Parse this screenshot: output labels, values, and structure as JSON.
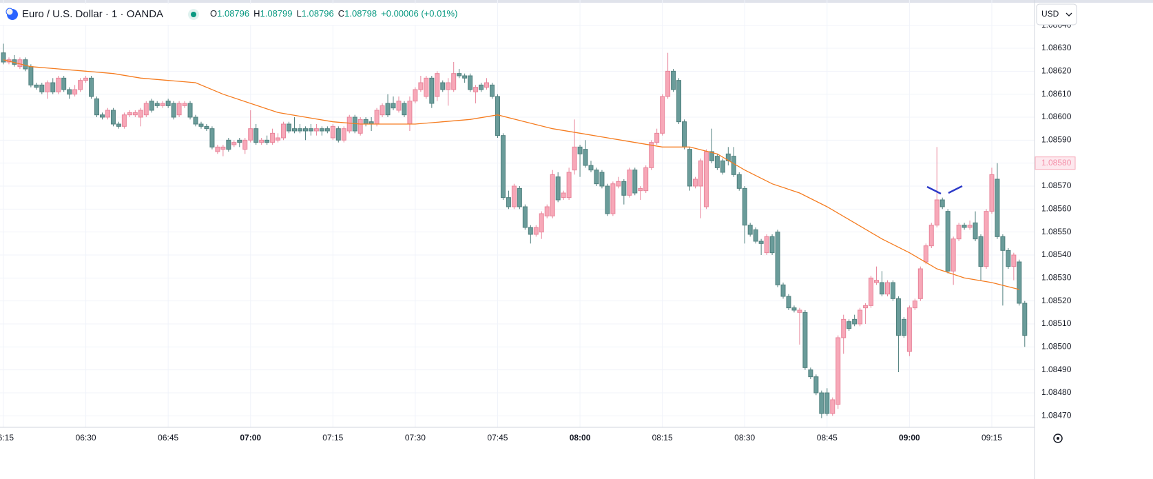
{
  "header": {
    "title": "Euro / U.S. Dollar · 1 · OANDA",
    "ohlc": [
      {
        "label": "O",
        "value": "1.08796"
      },
      {
        "label": "H",
        "value": "1.08799"
      },
      {
        "label": "L",
        "value": "1.08796"
      },
      {
        "label": "C",
        "value": "1.08798"
      }
    ],
    "change": "+0.00006 (+0.01%)",
    "currency": "USD"
  },
  "chart_data": {
    "type": "candlestick",
    "up_color": "#f7a8b8",
    "up_border": "#e8849a",
    "down_color": "#6a9c9a",
    "down_border": "#4f7f7d",
    "ylim": [
      1.08465,
      1.08651
    ],
    "yticks": [
      {
        "value": 1.0847,
        "label": "1.08470"
      },
      {
        "value": 1.0848,
        "label": "1.08480"
      },
      {
        "value": 1.0849,
        "label": "1.08490"
      },
      {
        "value": 1.085,
        "label": "1.08500"
      },
      {
        "value": 1.0851,
        "label": "1.08510"
      },
      {
        "value": 1.0852,
        "label": "1.08520"
      },
      {
        "value": 1.0853,
        "label": "1.08530"
      },
      {
        "value": 1.0854,
        "label": "1.08540"
      },
      {
        "value": 1.0855,
        "label": "1.08550"
      },
      {
        "value": 1.0856,
        "label": "1.08560"
      },
      {
        "value": 1.0857,
        "label": "1.08570"
      },
      {
        "value": 1.0858,
        "label": "1.08580"
      },
      {
        "value": 1.0859,
        "label": "1.08590"
      },
      {
        "value": 1.086,
        "label": "1.08600"
      },
      {
        "value": 1.0861,
        "label": "1.08610"
      },
      {
        "value": 1.0862,
        "label": "1.08620"
      },
      {
        "value": 1.0863,
        "label": "1.08630"
      },
      {
        "value": 1.0864,
        "label": "1.08640"
      }
    ],
    "xticks": [
      {
        "value": 0,
        "label": "06:15"
      },
      {
        "value": 15,
        "label": "06:30"
      },
      {
        "value": 30,
        "label": "06:45"
      },
      {
        "value": 45,
        "label": "07:00",
        "bold": true
      },
      {
        "value": 60,
        "label": "07:15"
      },
      {
        "value": 75,
        "label": "07:30"
      },
      {
        "value": 90,
        "label": "07:45"
      },
      {
        "value": 105,
        "label": "08:00",
        "bold": true
      },
      {
        "value": 120,
        "label": "08:15"
      },
      {
        "value": 135,
        "label": "08:30"
      },
      {
        "value": 150,
        "label": "08:45"
      },
      {
        "value": 165,
        "label": "09:00",
        "bold": true
      },
      {
        "value": 180,
        "label": "09:15"
      }
    ],
    "grid": true,
    "price_label": {
      "value": 1.0858,
      "label": "1.08580"
    },
    "ma": {
      "color": "#f57c20",
      "x": [
        0,
        5,
        10,
        15,
        20,
        25,
        30,
        35,
        40,
        45,
        50,
        55,
        60,
        65,
        70,
        75,
        80,
        85,
        90,
        95,
        100,
        105,
        110,
        115,
        120,
        125,
        130,
        135,
        140,
        145,
        150,
        155,
        160,
        165,
        170,
        175,
        180,
        185
      ],
      "values": [
        1.08625,
        1.08622,
        1.08621,
        1.0862,
        1.08619,
        1.08617,
        1.08616,
        1.08615,
        1.0861,
        1.08606,
        1.08602,
        1.086,
        1.08598,
        1.08597,
        1.08597,
        1.08597,
        1.08598,
        1.08599,
        1.08601,
        1.08598,
        1.08595,
        1.08593,
        1.08591,
        1.08589,
        1.08587,
        1.08587,
        1.08584,
        1.08577,
        1.08571,
        1.08567,
        1.08561,
        1.08554,
        1.08547,
        1.08541,
        1.08534,
        1.0853,
        1.08528,
        1.08525
      ]
    },
    "ohlc": [
      [
        1.08628,
        1.08632,
        1.08623,
        1.08624
      ],
      [
        1.08624,
        1.08626,
        1.08623,
        1.08625
      ],
      [
        1.08625,
        1.08627,
        1.08622,
        1.08623
      ],
      [
        1.08622,
        1.08626,
        1.08621,
        1.08625
      ],
      [
        1.08625,
        1.08626,
        1.0862,
        1.08621
      ],
      [
        1.08622,
        1.08623,
        1.08613,
        1.08614
      ],
      [
        1.08614,
        1.08615,
        1.08612,
        1.08613
      ],
      [
        1.08614,
        1.08615,
        1.0861,
        1.08611
      ],
      [
        1.08611,
        1.08616,
        1.08608,
        1.08615
      ],
      [
        1.08615,
        1.08617,
        1.0861,
        1.08611
      ],
      [
        1.08611,
        1.08618,
        1.0861,
        1.08617
      ],
      [
        1.08617,
        1.08618,
        1.08611,
        1.08612
      ],
      [
        1.08612,
        1.08613,
        1.08608,
        1.0861
      ],
      [
        1.0861,
        1.08614,
        1.08609,
        1.08612
      ],
      [
        1.08612,
        1.08617,
        1.08611,
        1.08616
      ],
      [
        1.08616,
        1.08618,
        1.08615,
        1.08617
      ],
      [
        1.08617,
        1.08618,
        1.08608,
        1.08609
      ],
      [
        1.08608,
        1.08609,
        1.086,
        1.08601
      ],
      [
        1.08601,
        1.08602,
        1.08599,
        1.086
      ],
      [
        1.086,
        1.08604,
        1.08599,
        1.08603
      ],
      [
        1.08603,
        1.08604,
        1.08596,
        1.08597
      ],
      [
        1.08597,
        1.08598,
        1.08595,
        1.08596
      ],
      [
        1.08596,
        1.08602,
        1.08595,
        1.08601
      ],
      [
        1.08601,
        1.08603,
        1.086,
        1.08602
      ],
      [
        1.08601,
        1.08603,
        1.086,
        1.08602
      ],
      [
        1.086,
        1.08604,
        1.08596,
        1.08603
      ],
      [
        1.08601,
        1.08607,
        1.086,
        1.08606
      ],
      [
        1.08607,
        1.08608,
        1.08602,
        1.08603
      ],
      [
        1.08606,
        1.08607,
        1.08604,
        1.08605
      ],
      [
        1.08605,
        1.08607,
        1.08604,
        1.08606
      ],
      [
        1.08607,
        1.08608,
        1.08604,
        1.08605
      ],
      [
        1.08606,
        1.08607,
        1.08599,
        1.086
      ],
      [
        1.08601,
        1.08607,
        1.086,
        1.08606
      ],
      [
        1.08605,
        1.08607,
        1.08604,
        1.08606
      ],
      [
        1.08606,
        1.08607,
        1.08599,
        1.086
      ],
      [
        1.086,
        1.08601,
        1.08596,
        1.08597
      ],
      [
        1.08597,
        1.08598,
        1.08595,
        1.08596
      ],
      [
        1.08596,
        1.08597,
        1.08594,
        1.08595
      ],
      [
        1.08595,
        1.08596,
        1.08586,
        1.08587
      ],
      [
        1.08585,
        1.08588,
        1.08584,
        1.08587
      ],
      [
        1.08586,
        1.08588,
        1.08583,
        1.08587
      ],
      [
        1.0859,
        1.08591,
        1.08585,
        1.08586
      ],
      [
        1.08588,
        1.0859,
        1.08587,
        1.08589
      ],
      [
        1.0859,
        1.08591,
        1.08587,
        1.08589
      ],
      [
        1.08586,
        1.08591,
        1.08584,
        1.0859
      ],
      [
        1.0859,
        1.08603,
        1.08589,
        1.08595
      ],
      [
        1.08595,
        1.08597,
        1.08588,
        1.08589
      ],
      [
        1.08589,
        1.08591,
        1.08588,
        1.0859
      ],
      [
        1.0859,
        1.08592,
        1.08588,
        1.08589
      ],
      [
        1.08589,
        1.08595,
        1.08588,
        1.08593
      ],
      [
        1.0859,
        1.08593,
        1.08589,
        1.08591
      ],
      [
        1.08591,
        1.08598,
        1.0859,
        1.08597
      ],
      [
        1.08597,
        1.08598,
        1.08593,
        1.08594
      ],
      [
        1.08595,
        1.086,
        1.08593,
        1.08594
      ],
      [
        1.08595,
        1.08597,
        1.08593,
        1.08594
      ],
      [
        1.08595,
        1.08596,
        1.0859,
        1.08594
      ],
      [
        1.08595,
        1.08597,
        1.08592,
        1.08594
      ],
      [
        1.08594,
        1.08597,
        1.08592,
        1.08595
      ],
      [
        1.08595,
        1.08596,
        1.08592,
        1.08594
      ],
      [
        1.08595,
        1.08596,
        1.08593,
        1.08594
      ],
      [
        1.08591,
        1.08597,
        1.0859,
        1.08596
      ],
      [
        1.08595,
        1.08596,
        1.08589,
        1.0859
      ],
      [
        1.0859,
        1.08596,
        1.08589,
        1.08595
      ],
      [
        1.08594,
        1.08601,
        1.08593,
        1.086
      ],
      [
        1.086,
        1.08601,
        1.08593,
        1.08594
      ],
      [
        1.08593,
        1.086,
        1.08592,
        1.08599
      ],
      [
        1.08599,
        1.086,
        1.08596,
        1.08597
      ],
      [
        1.08598,
        1.086,
        1.08594,
        1.08597
      ],
      [
        1.08597,
        1.08604,
        1.08596,
        1.08603
      ],
      [
        1.08601,
        1.08606,
        1.086,
        1.08605
      ],
      [
        1.08606,
        1.0861,
        1.086,
        1.08601
      ],
      [
        1.08606,
        1.08609,
        1.08603,
        1.08604
      ],
      [
        1.08603,
        1.08609,
        1.08602,
        1.08607
      ],
      [
        1.08606,
        1.08607,
        1.086,
        1.08601
      ],
      [
        1.08597,
        1.08609,
        1.08594,
        1.08607
      ],
      [
        1.08607,
        1.08613,
        1.08606,
        1.08612
      ],
      [
        1.08612,
        1.08618,
        1.08611,
        1.08615
      ],
      [
        1.08609,
        1.08618,
        1.08608,
        1.08617
      ],
      [
        1.08617,
        1.08618,
        1.08604,
        1.08606
      ],
      [
        1.08609,
        1.0862,
        1.08607,
        1.08619
      ],
      [
        1.08615,
        1.08616,
        1.08611,
        1.08612
      ],
      [
        1.08612,
        1.08617,
        1.08605,
        1.08615
      ],
      [
        1.08612,
        1.08624,
        1.08611,
        1.08619
      ],
      [
        1.08619,
        1.08621,
        1.08617,
        1.08618
      ],
      [
        1.08618,
        1.08619,
        1.08615,
        1.08617
      ],
      [
        1.08618,
        1.08619,
        1.08611,
        1.08612
      ],
      [
        1.08611,
        1.08614,
        1.08606,
        1.08613
      ],
      [
        1.08614,
        1.08615,
        1.08611,
        1.08612
      ],
      [
        1.08613,
        1.08617,
        1.08612,
        1.08615
      ],
      [
        1.08614,
        1.08615,
        1.08608,
        1.08609
      ],
      [
        1.08609,
        1.0861,
        1.08591,
        1.08592
      ],
      [
        1.08592,
        1.08593,
        1.08564,
        1.08565
      ],
      [
        1.08565,
        1.08568,
        1.0856,
        1.08561
      ],
      [
        1.08561,
        1.08571,
        1.0856,
        1.0857
      ],
      [
        1.08569,
        1.0857,
        1.0856,
        1.08561
      ],
      [
        1.08561,
        1.08562,
        1.08551,
        1.08552
      ],
      [
        1.08552,
        1.08553,
        1.08545,
        1.08549
      ],
      [
        1.08549,
        1.08553,
        1.08548,
        1.08552
      ],
      [
        1.0855,
        1.08559,
        1.08547,
        1.08558
      ],
      [
        1.08557,
        1.08562,
        1.08556,
        1.08561
      ],
      [
        1.08557,
        1.08577,
        1.08556,
        1.08575
      ],
      [
        1.08574,
        1.08576,
        1.08563,
        1.08564
      ],
      [
        1.08565,
        1.08568,
        1.08564,
        1.08567
      ],
      [
        1.08565,
        1.08578,
        1.08564,
        1.08576
      ],
      [
        1.08577,
        1.08599,
        1.08575,
        1.08587
      ],
      [
        1.08587,
        1.08588,
        1.08574,
        1.08584
      ],
      [
        1.08586,
        1.0859,
        1.08578,
        1.08579
      ],
      [
        1.08579,
        1.08581,
        1.08576,
        1.08577
      ],
      [
        1.08577,
        1.08578,
        1.0857,
        1.08571
      ],
      [
        1.08576,
        1.08577,
        1.08569,
        1.0857
      ],
      [
        1.0857,
        1.08571,
        1.08557,
        1.08558
      ],
      [
        1.08558,
        1.08572,
        1.08557,
        1.08571
      ],
      [
        1.0857,
        1.08574,
        1.08569,
        1.08572
      ],
      [
        1.08572,
        1.08573,
        1.08562,
        1.08566
      ],
      [
        1.08566,
        1.08578,
        1.08565,
        1.08577
      ],
      [
        1.08577,
        1.08578,
        1.08566,
        1.08567
      ],
      [
        1.08568,
        1.0857,
        1.08564,
        1.08569
      ],
      [
        1.08568,
        1.08579,
        1.08567,
        1.08578
      ],
      [
        1.08578,
        1.0859,
        1.08577,
        1.08589
      ],
      [
        1.08589,
        1.08595,
        1.08588,
        1.08593
      ],
      [
        1.08593,
        1.0861,
        1.08592,
        1.08609
      ],
      [
        1.08609,
        1.08628,
        1.08608,
        1.0862
      ],
      [
        1.0862,
        1.08621,
        1.08611,
        1.08612
      ],
      [
        1.08616,
        1.08617,
        1.08597,
        1.08598
      ],
      [
        1.08598,
        1.08599,
        1.08586,
        1.08587
      ],
      [
        1.08586,
        1.08587,
        1.08568,
        1.0857
      ],
      [
        1.0857,
        1.08574,
        1.08569,
        1.08573
      ],
      [
        1.0857,
        1.08582,
        1.08556,
        1.08581
      ],
      [
        1.08561,
        1.08586,
        1.0856,
        1.08585
      ],
      [
        1.08585,
        1.08595,
        1.0858,
        1.08581
      ],
      [
        1.08583,
        1.08584,
        1.08577,
        1.08578
      ],
      [
        1.08581,
        1.08582,
        1.08575,
        1.08576
      ],
      [
        1.08584,
        1.08587,
        1.08579,
        1.08581
      ],
      [
        1.08583,
        1.08587,
        1.08574,
        1.08575
      ],
      [
        1.08575,
        1.08576,
        1.08568,
        1.08569
      ],
      [
        1.08569,
        1.0857,
        1.08545,
        1.08553
      ],
      [
        1.08553,
        1.08554,
        1.08548,
        1.08549
      ],
      [
        1.08551,
        1.08552,
        1.08545,
        1.08546
      ],
      [
        1.08546,
        1.08547,
        1.0854,
        1.08545
      ],
      [
        1.08541,
        1.08549,
        1.0854,
        1.08548
      ],
      [
        1.08548,
        1.08549,
        1.0854,
        1.08541
      ],
      [
        1.0855,
        1.08551,
        1.08526,
        1.08527
      ],
      [
        1.08527,
        1.08528,
        1.08521,
        1.08522
      ],
      [
        1.08522,
        1.08523,
        1.08516,
        1.08517
      ],
      [
        1.08517,
        1.08518,
        1.08515,
        1.08516
      ],
      [
        1.08515,
        1.08517,
        1.08501,
        1.08516
      ],
      [
        1.08515,
        1.08516,
        1.0849,
        1.08491
      ],
      [
        1.0849,
        1.08491,
        1.08486,
        1.08487
      ],
      [
        1.08487,
        1.08488,
        1.08479,
        1.0848
      ],
      [
        1.0848,
        1.08481,
        1.08469,
        1.08471
      ],
      [
        1.0848,
        1.08482,
        1.0847,
        1.08471
      ],
      [
        1.08471,
        1.08478,
        1.0847,
        1.08477
      ],
      [
        1.08475,
        1.08505,
        1.08473,
        1.08504
      ],
      [
        1.08504,
        1.08514,
        1.08497,
        1.08512
      ],
      [
        1.08511,
        1.08512,
        1.08507,
        1.08508
      ],
      [
        1.08512,
        1.08514,
        1.08509,
        1.0851
      ],
      [
        1.0851,
        1.08517,
        1.08509,
        1.08516
      ],
      [
        1.08517,
        1.08519,
        1.0851,
        1.08518
      ],
      [
        1.08518,
        1.08531,
        1.08517,
        1.0853
      ],
      [
        1.08528,
        1.08535,
        1.08527,
        1.08529
      ],
      [
        1.08528,
        1.08533,
        1.08522,
        1.08523
      ],
      [
        1.08523,
        1.08529,
        1.08522,
        1.08528
      ],
      [
        1.08528,
        1.08529,
        1.0852,
        1.08521
      ],
      [
        1.08521,
        1.08522,
        1.08489,
        1.08505
      ],
      [
        1.08512,
        1.08513,
        1.08504,
        1.08505
      ],
      [
        1.08498,
        1.08518,
        1.08496,
        1.08517
      ],
      [
        1.08517,
        1.08521,
        1.08516,
        1.0852
      ],
      [
        1.08521,
        1.08535,
        1.0852,
        1.08534
      ],
      [
        1.08537,
        1.08545,
        1.08536,
        1.08544
      ],
      [
        1.08544,
        1.08554,
        1.08543,
        1.08553
      ],
      [
        1.08553,
        1.08587,
        1.08552,
        1.08564
      ],
      [
        1.08564,
        1.08565,
        1.0856,
        1.08561
      ],
      [
        1.08559,
        1.0856,
        1.08532,
        1.08533
      ],
      [
        1.08533,
        1.08548,
        1.08527,
        1.08547
      ],
      [
        1.08547,
        1.08554,
        1.08546,
        1.08553
      ],
      [
        1.08553,
        1.08554,
        1.08551,
        1.08552
      ],
      [
        1.08552,
        1.08555,
        1.08551,
        1.08553
      ],
      [
        1.08554,
        1.08559,
        1.08546,
        1.08547
      ],
      [
        1.08548,
        1.08549,
        1.08529,
        1.08535
      ],
      [
        1.08535,
        1.0856,
        1.08534,
        1.08559
      ],
      [
        1.08559,
        1.08578,
        1.08558,
        1.08575
      ],
      [
        1.08573,
        1.0858,
        1.08547,
        1.08548
      ],
      [
        1.08548,
        1.08549,
        1.08518,
        1.08542
      ],
      [
        1.08542,
        1.08543,
        1.08534,
        1.08535
      ],
      [
        1.08535,
        1.08541,
        1.08529,
        1.0854
      ],
      [
        1.08537,
        1.08538,
        1.08518,
        1.08519
      ],
      [
        1.08519,
        1.0852,
        1.085,
        1.08505
      ]
    ]
  }
}
